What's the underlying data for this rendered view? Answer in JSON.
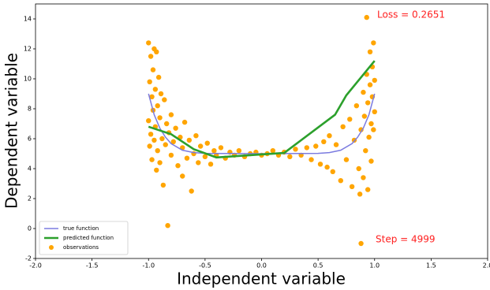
{
  "chart_data": {
    "type": "scatter_lines",
    "x_label": "Independent variable",
    "y_label": "Dependent variable",
    "annotations": [
      "Loss = 0.2651",
      "Step = 4999"
    ],
    "xlim": [
      -2,
      2
    ],
    "ylim": [
      -2,
      15
    ],
    "xticks": [
      {
        "value": -2,
        "label": "-2.0"
      },
      {
        "value": -1.5,
        "label": "-1.5"
      },
      {
        "value": -1,
        "label": "-1.0"
      },
      {
        "value": -0.5,
        "label": "-0.5"
      },
      {
        "value": 0,
        "label": "0.0"
      },
      {
        "value": 0.5,
        "label": "0.5"
      },
      {
        "value": 1,
        "label": "1.0"
      },
      {
        "value": 1.5,
        "label": "1.5"
      },
      {
        "value": 2,
        "label": "2.0"
      }
    ],
    "yticks": [
      -2,
      0,
      2,
      4,
      6,
      8,
      10,
      12,
      14
    ],
    "legend": "lower left",
    "series": [
      {
        "name": "true function",
        "kind": "line",
        "color": "#7b7be0",
        "x": [
          -1.0,
          -0.95,
          -0.9,
          -0.85,
          -0.8,
          -0.7,
          -0.6,
          -0.5,
          0.0,
          0.5,
          0.6,
          0.7,
          0.8,
          0.85,
          0.9,
          0.95,
          1.0
        ],
        "values": [
          9.0,
          7.6,
          6.7,
          6.1,
          5.67,
          5.23,
          5.07,
          5.02,
          5.0,
          5.02,
          5.07,
          5.23,
          5.67,
          6.1,
          6.7,
          7.6,
          9.0
        ]
      },
      {
        "name": "predicted function",
        "kind": "line",
        "color": "#2ca02c",
        "x": [
          -1.0,
          -0.8,
          -0.6,
          -0.4,
          0.0,
          0.2,
          0.65,
          0.75,
          1.0
        ],
        "values": [
          6.8,
          6.3,
          5.3,
          4.75,
          4.95,
          5.05,
          7.6,
          8.9,
          11.2
        ]
      },
      {
        "name": "observations",
        "kind": "scatter",
        "color": "#ffa500",
        "x": [
          -1.0,
          -1.0,
          -0.99,
          -0.99,
          -0.98,
          -0.98,
          -0.97,
          -0.97,
          -0.96,
          -0.96,
          -0.95,
          -0.95,
          -0.94,
          -0.94,
          -0.93,
          -0.93,
          -0.92,
          -0.92,
          -0.91,
          -0.9,
          -0.9,
          -0.89,
          -0.88,
          -0.87,
          -0.86,
          -0.85,
          -0.84,
          -0.83,
          -0.82,
          -0.8,
          -0.8,
          -0.78,
          -0.76,
          -0.74,
          -0.72,
          -0.7,
          -0.7,
          -0.68,
          -0.66,
          -0.64,
          -0.62,
          -0.6,
          -0.58,
          -0.56,
          -0.54,
          -0.5,
          -0.48,
          -0.45,
          -0.42,
          -0.4,
          -0.36,
          -0.32,
          -0.28,
          -0.24,
          -0.2,
          -0.15,
          -0.1,
          -0.05,
          0.0,
          0.05,
          0.1,
          0.15,
          0.2,
          0.25,
          0.3,
          0.35,
          0.4,
          0.44,
          0.48,
          0.52,
          0.55,
          0.58,
          0.6,
          0.63,
          0.66,
          0.7,
          0.72,
          0.75,
          0.78,
          0.8,
          0.82,
          0.84,
          0.86,
          0.87,
          0.88,
          0.9,
          0.9,
          0.91,
          0.92,
          0.93,
          0.94,
          0.94,
          0.95,
          0.96,
          0.96,
          0.97,
          0.97,
          0.98,
          0.98,
          0.99,
          0.99,
          1.0,
          1.0,
          0.93,
          0.88
        ],
        "values": [
          12.4,
          7.2,
          5.5,
          9.8,
          11.5,
          6.3,
          8.8,
          4.6,
          10.6,
          7.9,
          5.9,
          12.0,
          9.3,
          6.8,
          11.8,
          3.9,
          8.2,
          5.2,
          10.1,
          7.4,
          4.4,
          9.0,
          6.0,
          2.9,
          8.6,
          5.6,
          7.0,
          0.2,
          6.4,
          4.9,
          7.6,
          5.8,
          6.7,
          4.2,
          6.1,
          3.5,
          5.4,
          7.1,
          4.7,
          5.9,
          2.5,
          5.0,
          6.2,
          4.4,
          5.5,
          4.8,
          5.7,
          4.3,
          5.2,
          4.9,
          5.4,
          4.7,
          5.1,
          4.9,
          5.2,
          4.8,
          5.0,
          5.1,
          4.9,
          5.0,
          5.2,
          4.9,
          5.1,
          4.8,
          5.3,
          4.9,
          5.4,
          4.6,
          5.5,
          4.3,
          5.8,
          4.1,
          6.2,
          3.8,
          5.6,
          3.2,
          6.8,
          4.6,
          7.3,
          2.8,
          5.9,
          8.2,
          4.0,
          2.3,
          6.6,
          9.1,
          3.4,
          7.5,
          5.2,
          10.3,
          8.4,
          2.6,
          6.1,
          11.8,
          9.6,
          7.0,
          4.5,
          10.8,
          8.8,
          12.4,
          6.6,
          9.9,
          7.8,
          14.1,
          -1.0
        ]
      }
    ]
  }
}
